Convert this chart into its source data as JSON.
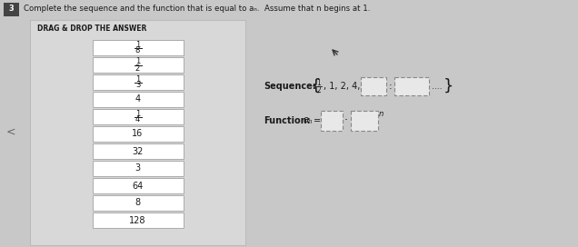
{
  "title": "Complete the sequence and the function that is equal to aₙ.  Assume that n begins at 1.",
  "problem_number": "3",
  "drag_drop_label": "DRAG & DROP THE ANSWER",
  "drag_items": [
    "1\n8",
    "1\n2",
    "1\n3",
    "4",
    "1\n4",
    "16",
    "32",
    "3",
    "64",
    "8",
    "128"
  ],
  "drag_items_display": [
    "1/8",
    "1/2",
    "1/3",
    "4",
    "1/4",
    "16",
    "32",
    "3",
    "64",
    "8",
    "128"
  ],
  "drag_items_is_frac": [
    true,
    true,
    true,
    false,
    true,
    false,
    false,
    false,
    false,
    false,
    false
  ],
  "sequence_label": "Sequence:",
  "function_label": "Function:",
  "bg_color": "#c8c8c8",
  "panel_color": "#d8d8d8",
  "box_color": "#f5f5f5",
  "box_border": "#aaaaaa",
  "text_color": "#1a1a1a",
  "panel_border": "#bbbbbb",
  "white": "#ffffff"
}
